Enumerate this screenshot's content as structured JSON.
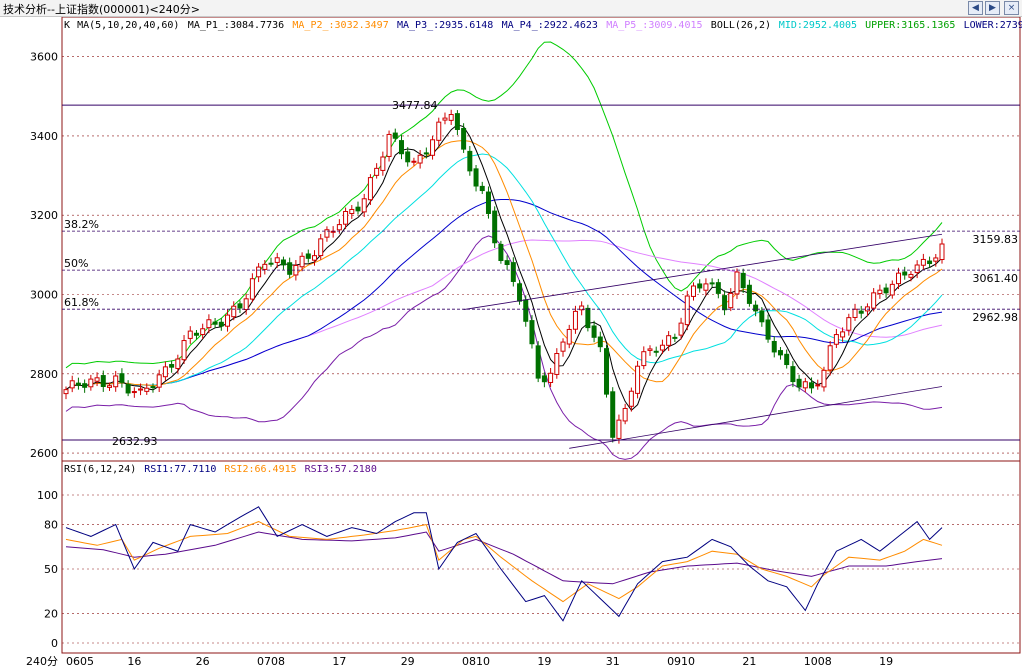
{
  "app_title": "技术分析--上证指数(000001)<240分>",
  "window_buttons": {
    "prev": "◀",
    "next": "▶",
    "close": "×"
  },
  "colors": {
    "up": "#d00000",
    "down": "#007000",
    "ma5": "#000000",
    "ma10": "#ff8c00",
    "ma20": "#00e0e0",
    "ma40": "#0000cc",
    "ma60": "#e080ff",
    "boll_mid": "#7a1fa8",
    "boll_upper": "#00cc00",
    "boll_lower": "#7a1fa8",
    "rsi1": "#000080",
    "rsi2": "#ff8c00",
    "rsi3": "#5a0a8c",
    "grid": "#8c1414"
  },
  "chart_data": [
    {
      "type": "line",
      "panel": "candlestick",
      "legend": [
        {
          "text": "K",
          "color": "#000000"
        },
        {
          "text": "MA(5,10,20,40,60)",
          "color": "#000000"
        },
        {
          "text": "MA_P1_:3084.7736",
          "color": "#000000"
        },
        {
          "text": "MA_P2_:3032.3497",
          "color": "#ff8c00"
        },
        {
          "text": "MA_P3_:2935.6148",
          "color": "#000080"
        },
        {
          "text": "MA_P4_:2922.4623",
          "color": "#000080"
        },
        {
          "text": "MA_P5_:3009.4015",
          "color": "#d080ff"
        },
        {
          "text": "BOLL(26,2)",
          "color": "#000000"
        },
        {
          "text": "MID:2952.4005",
          "color": "#00c8c8"
        },
        {
          "text": "UPPER:3165.1365",
          "color": "#00a000"
        },
        {
          "text": "LOWER:2739.",
          "color": "#000080"
        }
      ],
      "ylim": [
        2580,
        3700
      ],
      "yticks": [
        2600,
        2800,
        3000,
        3200,
        3400,
        3600
      ],
      "x_labels": [
        {
          "i": 0,
          "t": "0605"
        },
        {
          "i": 11,
          "t": "16"
        },
        {
          "i": 22,
          "t": "26"
        },
        {
          "i": 33,
          "t": "0708"
        },
        {
          "i": 44,
          "t": "17"
        },
        {
          "i": 55,
          "t": "29"
        },
        {
          "i": 66,
          "t": "0810"
        },
        {
          "i": 77,
          "t": "19"
        },
        {
          "i": 88,
          "t": "31"
        },
        {
          "i": 99,
          "t": "0910"
        },
        {
          "i": 110,
          "t": "21"
        },
        {
          "i": 121,
          "t": "1008"
        },
        {
          "i": 132,
          "t": "19"
        }
      ],
      "fib_levels": [
        {
          "label": "38.2%",
          "value": 3159.83,
          "value_label": "3159.83"
        },
        {
          "label": "50%",
          "value": 3061.4,
          "value_label": "3061.40"
        },
        {
          "label": "61.8%",
          "value": 2962.98,
          "value_label": "2962.98"
        }
      ],
      "hlines": [
        3477.84,
        2632.93
      ],
      "annotations": [
        {
          "text": "3477.84",
          "value": 3477.84
        },
        {
          "text": "2632.93",
          "value": 2632.93
        }
      ],
      "key_points": [
        {
          "i": 0,
          "v": 2760
        },
        {
          "i": 8,
          "v": 2790
        },
        {
          "i": 12,
          "v": 2740
        },
        {
          "i": 16,
          "v": 2810
        },
        {
          "i": 20,
          "v": 2900
        },
        {
          "i": 24,
          "v": 2920
        },
        {
          "i": 28,
          "v": 2980
        },
        {
          "i": 32,
          "v": 3080
        },
        {
          "i": 36,
          "v": 3070
        },
        {
          "i": 40,
          "v": 3110
        },
        {
          "i": 44,
          "v": 3180
        },
        {
          "i": 48,
          "v": 3250
        },
        {
          "i": 52,
          "v": 3390
        },
        {
          "i": 56,
          "v": 3330
        },
        {
          "i": 60,
          "v": 3420
        },
        {
          "i": 62,
          "v": 3460
        },
        {
          "i": 64,
          "v": 3350
        },
        {
          "i": 67,
          "v": 3260
        },
        {
          "i": 70,
          "v": 3090
        },
        {
          "i": 73,
          "v": 2990
        },
        {
          "i": 76,
          "v": 2800
        },
        {
          "i": 78,
          "v": 2800
        },
        {
          "i": 80,
          "v": 2890
        },
        {
          "i": 83,
          "v": 2960
        },
        {
          "i": 86,
          "v": 2860
        },
        {
          "i": 88,
          "v": 2660
        },
        {
          "i": 90,
          "v": 2700
        },
        {
          "i": 92,
          "v": 2820
        },
        {
          "i": 95,
          "v": 2870
        },
        {
          "i": 98,
          "v": 2900
        },
        {
          "i": 100,
          "v": 2990
        },
        {
          "i": 103,
          "v": 3030
        },
        {
          "i": 106,
          "v": 2980
        },
        {
          "i": 108,
          "v": 3050
        },
        {
          "i": 110,
          "v": 2990
        },
        {
          "i": 112,
          "v": 2910
        },
        {
          "i": 115,
          "v": 2840
        },
        {
          "i": 118,
          "v": 2780
        },
        {
          "i": 120,
          "v": 2760
        },
        {
          "i": 122,
          "v": 2800
        },
        {
          "i": 124,
          "v": 2900
        },
        {
          "i": 127,
          "v": 2960
        },
        {
          "i": 130,
          "v": 2990
        },
        {
          "i": 133,
          "v": 3020
        },
        {
          "i": 136,
          "v": 3070
        },
        {
          "i": 139,
          "v": 3090
        },
        {
          "i": 141,
          "v": 3110
        }
      ]
    },
    {
      "type": "line",
      "panel": "rsi",
      "legend": [
        {
          "text": "RSI(6,12,24)",
          "color": "#000000"
        },
        {
          "text": "RSI1:77.7110",
          "color": "#000080"
        },
        {
          "text": "RSI2:66.4915",
          "color": "#ff8c00"
        },
        {
          "text": "RSI3:57.2180",
          "color": "#5a0a8c"
        }
      ],
      "ylim": [
        0,
        100
      ],
      "yticks": [
        0,
        20,
        50,
        80,
        100
      ],
      "axis_unit": "240分",
      "rsi1_key": [
        {
          "i": 0,
          "v": 78
        },
        {
          "i": 4,
          "v": 72
        },
        {
          "i": 8,
          "v": 80
        },
        {
          "i": 11,
          "v": 50
        },
        {
          "i": 14,
          "v": 68
        },
        {
          "i": 18,
          "v": 62
        },
        {
          "i": 20,
          "v": 80
        },
        {
          "i": 24,
          "v": 75
        },
        {
          "i": 28,
          "v": 85
        },
        {
          "i": 31,
          "v": 92
        },
        {
          "i": 34,
          "v": 72
        },
        {
          "i": 38,
          "v": 80
        },
        {
          "i": 42,
          "v": 72
        },
        {
          "i": 46,
          "v": 78
        },
        {
          "i": 50,
          "v": 74
        },
        {
          "i": 53,
          "v": 82
        },
        {
          "i": 56,
          "v": 88
        },
        {
          "i": 58,
          "v": 88
        },
        {
          "i": 60,
          "v": 50
        },
        {
          "i": 63,
          "v": 68
        },
        {
          "i": 66,
          "v": 74
        },
        {
          "i": 70,
          "v": 50
        },
        {
          "i": 74,
          "v": 28
        },
        {
          "i": 77,
          "v": 32
        },
        {
          "i": 80,
          "v": 15
        },
        {
          "i": 83,
          "v": 42
        },
        {
          "i": 86,
          "v": 30
        },
        {
          "i": 89,
          "v": 18
        },
        {
          "i": 92,
          "v": 40
        },
        {
          "i": 96,
          "v": 55
        },
        {
          "i": 100,
          "v": 58
        },
        {
          "i": 104,
          "v": 70
        },
        {
          "i": 107,
          "v": 65
        },
        {
          "i": 110,
          "v": 52
        },
        {
          "i": 113,
          "v": 42
        },
        {
          "i": 116,
          "v": 38
        },
        {
          "i": 119,
          "v": 22
        },
        {
          "i": 121,
          "v": 40
        },
        {
          "i": 124,
          "v": 62
        },
        {
          "i": 128,
          "v": 70
        },
        {
          "i": 131,
          "v": 62
        },
        {
          "i": 134,
          "v": 72
        },
        {
          "i": 137,
          "v": 82
        },
        {
          "i": 139,
          "v": 70
        },
        {
          "i": 141,
          "v": 78
        }
      ],
      "rsi2_key": [
        {
          "i": 0,
          "v": 70
        },
        {
          "i": 5,
          "v": 66
        },
        {
          "i": 9,
          "v": 70
        },
        {
          "i": 11,
          "v": 56
        },
        {
          "i": 15,
          "v": 64
        },
        {
          "i": 20,
          "v": 72
        },
        {
          "i": 26,
          "v": 74
        },
        {
          "i": 31,
          "v": 82
        },
        {
          "i": 36,
          "v": 72
        },
        {
          "i": 42,
          "v": 70
        },
        {
          "i": 48,
          "v": 73
        },
        {
          "i": 53,
          "v": 76
        },
        {
          "i": 58,
          "v": 80
        },
        {
          "i": 60,
          "v": 56
        },
        {
          "i": 64,
          "v": 70
        },
        {
          "i": 66,
          "v": 72
        },
        {
          "i": 70,
          "v": 58
        },
        {
          "i": 75,
          "v": 42
        },
        {
          "i": 80,
          "v": 28
        },
        {
          "i": 84,
          "v": 40
        },
        {
          "i": 89,
          "v": 30
        },
        {
          "i": 92,
          "v": 38
        },
        {
          "i": 96,
          "v": 52
        },
        {
          "i": 100,
          "v": 55
        },
        {
          "i": 104,
          "v": 62
        },
        {
          "i": 108,
          "v": 60
        },
        {
          "i": 112,
          "v": 50
        },
        {
          "i": 116,
          "v": 45
        },
        {
          "i": 120,
          "v": 38
        },
        {
          "i": 122,
          "v": 46
        },
        {
          "i": 126,
          "v": 58
        },
        {
          "i": 131,
          "v": 56
        },
        {
          "i": 135,
          "v": 62
        },
        {
          "i": 138,
          "v": 70
        },
        {
          "i": 141,
          "v": 66
        }
      ],
      "rsi3_key": [
        {
          "i": 0,
          "v": 65
        },
        {
          "i": 6,
          "v": 63
        },
        {
          "i": 11,
          "v": 58
        },
        {
          "i": 16,
          "v": 60
        },
        {
          "i": 24,
          "v": 66
        },
        {
          "i": 31,
          "v": 75
        },
        {
          "i": 38,
          "v": 70
        },
        {
          "i": 46,
          "v": 69
        },
        {
          "i": 53,
          "v": 71
        },
        {
          "i": 58,
          "v": 75
        },
        {
          "i": 60,
          "v": 62
        },
        {
          "i": 66,
          "v": 70
        },
        {
          "i": 72,
          "v": 60
        },
        {
          "i": 80,
          "v": 42
        },
        {
          "i": 88,
          "v": 40
        },
        {
          "i": 94,
          "v": 48
        },
        {
          "i": 100,
          "v": 52
        },
        {
          "i": 108,
          "v": 54
        },
        {
          "i": 114,
          "v": 49
        },
        {
          "i": 120,
          "v": 45
        },
        {
          "i": 126,
          "v": 52
        },
        {
          "i": 132,
          "v": 52
        },
        {
          "i": 137,
          "v": 55
        },
        {
          "i": 141,
          "v": 57
        }
      ]
    }
  ]
}
